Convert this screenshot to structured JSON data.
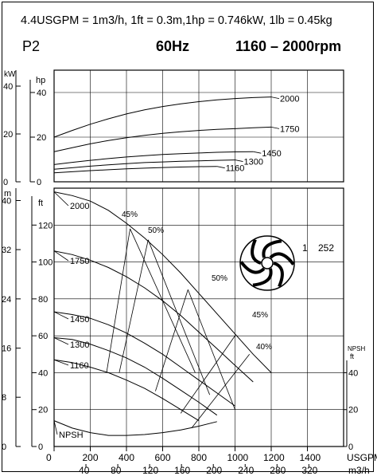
{
  "header": {
    "conversion": "4.4USGPM = 1m3/h, 1ft = 0.3m,1hp = 0.746kW, 1lb = 0.45kg",
    "model": "P2",
    "frequency": "60Hz",
    "speed_range": "1160 – 2000rpm"
  },
  "impeller": {
    "label_a": "1",
    "label_b": "252",
    "icon": "impeller-icon"
  },
  "chart_data": [
    {
      "type": "line",
      "panel": "power",
      "title": "",
      "xlabel": "USGPM",
      "x2label": "m3/h",
      "left_units": "kW",
      "right_units": "hp",
      "ylim_hp": [
        0,
        50
      ],
      "left_ticks": [
        {
          "label": "40",
          "v": 53.6
        },
        {
          "label": "20",
          "v": 26.8
        },
        {
          "label": "0",
          "v": 0
        }
      ],
      "right_ticks": [
        {
          "label": "40",
          "v": 40
        },
        {
          "label": "20",
          "v": 20
        },
        {
          "label": "0",
          "v": 0
        }
      ],
      "series": [
        {
          "name": "2000",
          "x": [
            0,
            100,
            200,
            300,
            400,
            500,
            600,
            700,
            800,
            900,
            1000,
            1100,
            1200
          ],
          "values": [
            20,
            23,
            25.8,
            28.2,
            30.4,
            32.2,
            33.7,
            34.9,
            35.9,
            36.7,
            37.3,
            37.7,
            38
          ]
        },
        {
          "name": "1750",
          "x": [
            0,
            100,
            200,
            300,
            400,
            500,
            600,
            700,
            800,
            900,
            1000,
            1100,
            1200
          ],
          "values": [
            13.5,
            15.3,
            17,
            18.5,
            19.7,
            20.8,
            21.7,
            22.4,
            23,
            23.5,
            23.8,
            24.2,
            24.5
          ]
        },
        {
          "name": "1450",
          "x": [
            0,
            100,
            200,
            300,
            400,
            500,
            600,
            700,
            800,
            900,
            1000,
            1100
          ],
          "values": [
            7.7,
            8.7,
            9.6,
            10.4,
            11.1,
            11.7,
            12.2,
            12.6,
            12.9,
            13.2,
            13.4,
            13.5
          ]
        },
        {
          "name": "1300",
          "x": [
            0,
            100,
            200,
            300,
            400,
            500,
            600,
            700,
            800,
            900,
            1000
          ],
          "values": [
            5.6,
            6.3,
            7,
            7.6,
            8.1,
            8.6,
            8.9,
            9.2,
            9.4,
            9.6,
            9.8
          ]
        },
        {
          "name": "1160",
          "x": [
            0,
            100,
            200,
            300,
            400,
            500,
            600,
            700,
            800,
            900
          ],
          "values": [
            4,
            4.5,
            5,
            5.4,
            5.8,
            6.1,
            6.4,
            6.6,
            6.8,
            6.9
          ]
        }
      ],
      "grid": true
    },
    {
      "type": "line",
      "panel": "head",
      "title": "",
      "xlabel": "USGPM",
      "x2label": "m3/h",
      "left_units": "m",
      "right_units": "ft",
      "npsh_label": "NPSH",
      "npsh_units": "ft",
      "ylim_ft": [
        0,
        140
      ],
      "xlim_usgpm": [
        0,
        1600
      ],
      "left_ticks": [
        {
          "label": "40",
          "v": 133.3
        },
        {
          "label": "32",
          "v": 106.7
        },
        {
          "label": "24",
          "v": 80
        },
        {
          "label": "16",
          "v": 53.3
        },
        {
          "label": "8",
          "v": 26.7
        },
        {
          "label": "0",
          "v": 0
        }
      ],
      "right_ticks": [
        {
          "label": "120",
          "v": 120
        },
        {
          "label": "100",
          "v": 100
        },
        {
          "label": "80",
          "v": 80
        },
        {
          "label": "60",
          "v": 60
        },
        {
          "label": "40",
          "v": 40
        },
        {
          "label": "20",
          "v": 20
        },
        {
          "label": "0",
          "v": 0
        }
      ],
      "npsh_ticks": [
        {
          "label": "40",
          "v": 40
        },
        {
          "label": "20",
          "v": 20
        },
        {
          "label": "0",
          "v": 0
        }
      ],
      "x_ticks": [
        0,
        200,
        400,
        600,
        800,
        1000,
        1200,
        1400
      ],
      "x2_ticks": [
        40,
        80,
        120,
        160,
        200,
        240,
        280,
        320
      ],
      "series": [
        {
          "name": "2000",
          "x": [
            0,
            100,
            200,
            300,
            400,
            500,
            600,
            700,
            800,
            900,
            1000,
            1100,
            1200
          ],
          "values": [
            138,
            136,
            133,
            128,
            121,
            113,
            104,
            94,
            83,
            72,
            61,
            50,
            40
          ]
        },
        {
          "name": "1750",
          "x": [
            0,
            100,
            200,
            300,
            400,
            500,
            600,
            700,
            800,
            900,
            1000,
            1100
          ],
          "values": [
            106,
            104,
            101,
            97,
            92,
            86,
            79,
            71,
            62,
            53,
            44,
            35
          ]
        },
        {
          "name": "1450",
          "x": [
            0,
            100,
            200,
            300,
            400,
            500,
            600,
            700,
            800,
            900,
            1000
          ],
          "values": [
            73,
            71.5,
            69.5,
            66,
            61.5,
            56,
            50,
            43,
            36,
            29,
            22
          ]
        },
        {
          "name": "1300",
          "x": [
            0,
            100,
            200,
            300,
            400,
            500,
            600,
            700,
            800,
            900
          ],
          "values": [
            59,
            58,
            55.5,
            52,
            48,
            43,
            37,
            30.5,
            24,
            17
          ]
        },
        {
          "name": "1160",
          "x": [
            0,
            100,
            200,
            300,
            400,
            500,
            600,
            700,
            800
          ],
          "values": [
            47,
            45.5,
            43,
            40,
            36,
            31.5,
            26,
            20,
            14
          ]
        },
        {
          "name": "NPSH",
          "x": [
            0,
            100,
            200,
            300,
            400,
            500,
            600,
            700,
            800,
            900
          ],
          "values": [
            14,
            10,
            7.5,
            6,
            6,
            6.5,
            7.5,
            9,
            11,
            13.5
          ]
        }
      ],
      "efficiency": [
        {
          "label": "45%",
          "x": [
            290,
            420
          ],
          "y": [
            40,
            118
          ]
        },
        {
          "label": "45%",
          "x": [
            420,
            780
          ],
          "y": [
            118,
            40
          ]
        },
        {
          "label": "50%",
          "x": [
            360,
            520
          ],
          "y": [
            40,
            112
          ]
        },
        {
          "label": "50%",
          "x": [
            520,
            860
          ],
          "y": [
            112,
            28
          ]
        },
        {
          "label": "50%",
          "x": [
            560,
            740
          ],
          "y": [
            30,
            85
          ]
        },
        {
          "label": "50%",
          "x": [
            740,
            1000
          ],
          "y": [
            85,
            20
          ]
        },
        {
          "label": "45%",
          "x": [
            700,
            1000
          ],
          "y": [
            18,
            60
          ]
        },
        {
          "label": "40%",
          "x": [
            760,
            1080
          ],
          "y": [
            10,
            50
          ]
        }
      ],
      "eff_labels": [
        "45%",
        "50%",
        "50%",
        "45%",
        "40%"
      ],
      "grid": true
    }
  ]
}
